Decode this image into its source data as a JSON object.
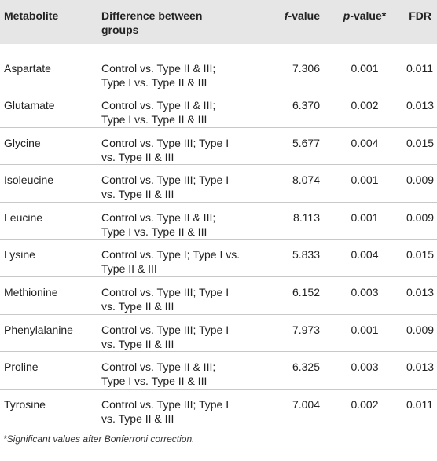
{
  "table": {
    "header": [
      "Metabolite",
      "Difference between groups",
      "f-value",
      "p-value*",
      "FDR"
    ],
    "rows": [
      [
        "Aspartate",
        "Control vs. Type II & III; Type I vs. Type II & III",
        "7.306",
        "0.001",
        "0.011"
      ],
      [
        "Glutamate",
        "Control vs. Type II & III; Type I vs. Type II & III",
        "6.370",
        "0.002",
        "0.013"
      ],
      [
        "Glycine",
        "Control vs. Type III; Type I vs. Type II & III",
        "5.677",
        "0.004",
        "0.015"
      ],
      [
        "Isoleucine",
        "Control vs. Type III; Type I vs. Type II & III",
        "8.074",
        "0.001",
        "0.009"
      ],
      [
        "Leucine",
        "Control vs. Type II & III; Type I vs. Type II & III",
        "8.113",
        "0.001",
        "0.009"
      ],
      [
        "Lysine",
        "Control vs. Type I; Type I vs. Type II & III",
        "5.833",
        "0.004",
        "0.015"
      ],
      [
        "Methionine",
        "Control vs. Type III; Type I vs. Type II & III",
        "6.152",
        "0.003",
        "0.013"
      ],
      [
        "Phenylalanine",
        "Control vs. Type III; Type I vs. Type II & III",
        "7.973",
        "0.001",
        "0.009"
      ],
      [
        "Proline",
        "Control vs. Type II & III; Type I vs. Type II & III",
        "6.325",
        "0.003",
        "0.013"
      ],
      [
        "Tyrosine",
        "Control vs. Type III; Type I vs. Type II & III",
        "7.004",
        "0.002",
        "0.011"
      ]
    ]
  },
  "footnote": "*Significant values after Bonferroni correction."
}
